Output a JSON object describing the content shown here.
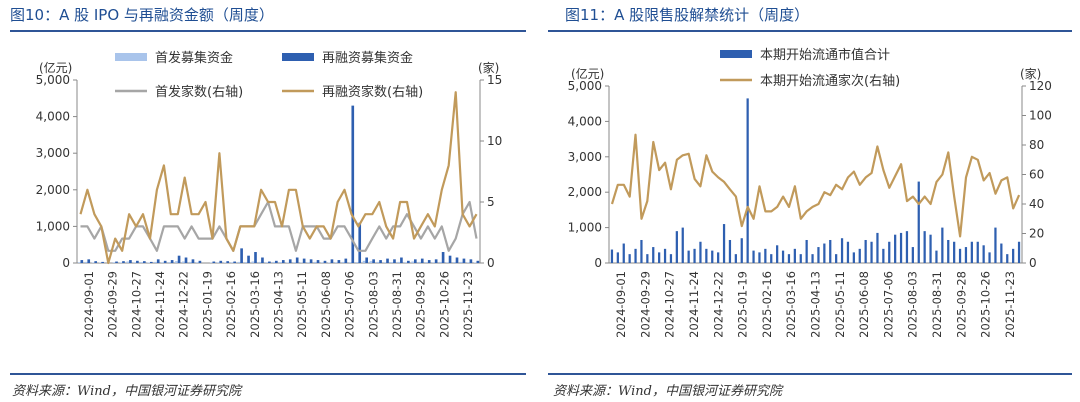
{
  "left": {
    "title": "图10：A 股 IPO 与再融资金额（周度）",
    "source": "资料来源：Wind，中国银河证券研究院",
    "chart_data": {
      "type": "bar",
      "y_left_unit": "(亿元)",
      "y_right_unit": "(家)",
      "ylim_left": [
        0,
        5000
      ],
      "ylim_right": [
        0,
        15
      ],
      "y_left_ticks": [
        "0",
        "1,000",
        "2,000",
        "3,000",
        "4,000",
        "5,000"
      ],
      "y_right_ticks": [
        "0",
        "5",
        "10",
        "15"
      ],
      "x_ticks": [
        "2024-09-01",
        "2024-09-29",
        "2024-10-27",
        "2024-11-24",
        "2024-12-22",
        "2025-01-19",
        "2025-02-16",
        "2025-03-16",
        "2025-04-13",
        "2025-05-11",
        "2025-06-08",
        "2025-07-06",
        "2025-08-03",
        "2025-08-31",
        "2025-09-28",
        "2025-10-26",
        "2025-11-23"
      ],
      "series": [
        {
          "name": "首发募集资金",
          "kind": "bar",
          "axis": "left",
          "color": "#a9c4eb",
          "values": [
            20,
            30,
            15,
            10,
            0,
            20,
            15,
            40,
            20,
            25,
            15,
            30,
            20,
            25,
            50,
            40,
            30,
            20,
            0,
            10,
            20,
            15,
            20,
            30,
            25,
            40,
            30,
            20,
            30,
            25,
            15,
            20,
            10,
            20,
            30,
            20,
            15,
            20,
            30,
            20,
            25,
            60,
            50,
            30,
            20,
            25,
            30,
            20,
            40,
            30,
            25,
            20,
            30,
            20,
            25,
            30,
            20,
            15
          ]
        },
        {
          "name": "再融资募集资金",
          "kind": "bar",
          "axis": "left",
          "color": "#2e5fb0",
          "values": [
            80,
            100,
            50,
            30,
            0,
            40,
            50,
            80,
            60,
            50,
            30,
            100,
            60,
            80,
            200,
            150,
            100,
            60,
            0,
            40,
            60,
            50,
            40,
            400,
            200,
            300,
            150,
            40,
            60,
            80,
            100,
            150,
            120,
            100,
            80,
            60,
            100,
            80,
            120,
            4300,
            1100,
            150,
            100,
            80,
            120,
            100,
            150,
            60,
            100,
            120,
            80,
            100,
            300,
            200,
            150,
            120,
            100,
            60
          ]
        },
        {
          "name": "首发家数(右轴)",
          "kind": "line",
          "axis": "right",
          "color": "#a6a6a6",
          "values": [
            3,
            3,
            2,
            3,
            1,
            1,
            2,
            2,
            3,
            3,
            2,
            1,
            3,
            3,
            3,
            2,
            3,
            2,
            2,
            2,
            3,
            2,
            1,
            3,
            3,
            3,
            4,
            5,
            3,
            3,
            3,
            1,
            3,
            3,
            3,
            2,
            2,
            3,
            3,
            2,
            1,
            1,
            2,
            3,
            2,
            3,
            3,
            4,
            3,
            2,
            3,
            2,
            3,
            1,
            2,
            4,
            5,
            2
          ]
        },
        {
          "name": "再融资家数(右轴)",
          "kind": "line",
          "axis": "right",
          "color": "#c19a5b",
          "values": [
            4,
            6,
            4,
            3,
            0,
            2,
            1,
            4,
            3,
            4,
            2,
            6,
            8,
            4,
            4,
            7,
            4,
            4,
            5,
            2,
            9,
            2,
            1,
            3,
            3,
            3,
            6,
            5,
            5,
            3,
            6,
            6,
            3,
            2,
            3,
            3,
            2,
            5,
            6,
            4,
            3,
            4,
            4,
            5,
            3,
            2,
            5,
            5,
            2,
            3,
            4,
            3,
            6,
            8,
            14,
            4,
            3,
            4
          ]
        }
      ]
    }
  },
  "right": {
    "title": "图11：A 股限售股解禁统计（周度）",
    "source": "资料来源：Wind，中国银河证券研究院",
    "chart_data": {
      "type": "bar",
      "y_left_unit": "(亿元)",
      "y_right_unit": "(家)",
      "ylim_left": [
        0,
        5000
      ],
      "ylim_right": [
        0,
        120
      ],
      "y_left_ticks": [
        "0",
        "1,000",
        "2,000",
        "3,000",
        "4,000",
        "5,000"
      ],
      "y_right_ticks": [
        "0",
        "20",
        "40",
        "60",
        "80",
        "100",
        "120"
      ],
      "x_ticks": [
        "2024-09-01",
        "2024-09-29",
        "2024-10-27",
        "2024-11-24",
        "2024-12-22",
        "2025-01-19",
        "2025-02-16",
        "2025-03-16",
        "2025-04-13",
        "2025-05-11",
        "2025-06-08",
        "2025-07-06",
        "2025-08-03",
        "2025-08-31",
        "2025-09-28",
        "2025-10-26",
        "2025-11-23"
      ],
      "series": [
        {
          "name": "本期开始流通市值合计",
          "kind": "bar",
          "axis": "left",
          "color": "#2e5fb0",
          "values": [
            380,
            300,
            550,
            250,
            400,
            650,
            250,
            450,
            300,
            400,
            250,
            900,
            1000,
            350,
            400,
            600,
            400,
            350,
            300,
            1100,
            650,
            250,
            700,
            4650,
            350,
            300,
            400,
            250,
            500,
            350,
            250,
            400,
            250,
            650,
            250,
            450,
            550,
            650,
            250,
            700,
            600,
            300,
            400,
            650,
            600,
            850,
            400,
            600,
            800,
            850,
            900,
            450,
            2300,
            900,
            800,
            350,
            1000,
            650,
            600,
            400,
            450,
            600,
            600,
            500,
            300,
            1000,
            550,
            250,
            400,
            600
          ]
        },
        {
          "name": "本期开始流通家次(右轴)",
          "kind": "line",
          "axis": "right",
          "color": "#c19a5b",
          "values": [
            40,
            53,
            53,
            45,
            87,
            30,
            42,
            82,
            63,
            68,
            50,
            70,
            73,
            74,
            57,
            52,
            73,
            62,
            58,
            55,
            50,
            45,
            25,
            38,
            30,
            52,
            35,
            35,
            38,
            45,
            38,
            52,
            30,
            35,
            38,
            40,
            48,
            46,
            53,
            50,
            58,
            62,
            53,
            58,
            61,
            79,
            63,
            51,
            59,
            67,
            42,
            45,
            40,
            45,
            40,
            55,
            60,
            75,
            45,
            18,
            58,
            72,
            70,
            56,
            61,
            47,
            56,
            58,
            37,
            46
          ]
        }
      ]
    }
  }
}
